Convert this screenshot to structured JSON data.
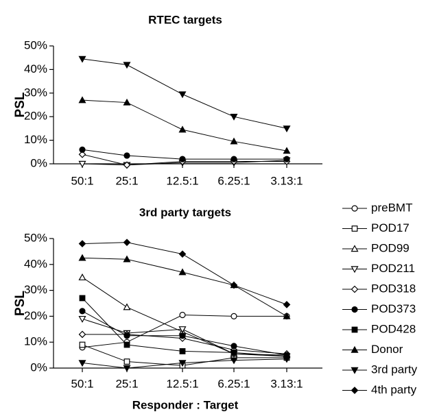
{
  "chart_data": [
    {
      "type": "line",
      "title": "RTEC targets",
      "y_label": "PSL",
      "categories": [
        "50:1",
        "25:1",
        "12.5:1",
        "6.25:1",
        "3.13:1"
      ],
      "ylim": [
        0,
        50
      ],
      "yticks": [
        {
          "value": 0,
          "label": "0%"
        },
        {
          "value": 10,
          "label": "10%"
        },
        {
          "value": 20,
          "label": "20%"
        },
        {
          "value": 30,
          "label": "30%"
        },
        {
          "value": 40,
          "label": "40%"
        },
        {
          "value": 50,
          "label": "50%"
        }
      ],
      "series": [
        {
          "name": "POD211",
          "color": "#000000",
          "marker": "triangle-down-open",
          "values": [
            0,
            -0.5,
            0.5,
            0.5,
            1.5
          ]
        },
        {
          "name": "POD318",
          "color": "#000000",
          "marker": "diamond-open",
          "values": [
            4,
            -0.5,
            1,
            1,
            1
          ]
        },
        {
          "name": "POD373",
          "color": "#000000",
          "marker": "circle-filled",
          "values": [
            6,
            3.5,
            2,
            2,
            2
          ]
        },
        {
          "name": "Donor",
          "color": "#000000",
          "marker": "triangle-up-filled",
          "values": [
            27,
            26,
            14.5,
            9.5,
            5.5
          ]
        },
        {
          "name": "3rd party",
          "color": "#000000",
          "marker": "triangle-down-filled",
          "values": [
            44.5,
            42,
            29.5,
            20,
            15
          ]
        }
      ]
    },
    {
      "type": "line",
      "title": "3rd party targets",
      "y_label": "PSL",
      "x_label": "Responder : Target",
      "categories": [
        "50:1",
        "25:1",
        "12.5:1",
        "6.25:1",
        "3.13:1"
      ],
      "ylim": [
        0,
        50
      ],
      "yticks": [
        {
          "value": 0,
          "label": "0%"
        },
        {
          "value": 10,
          "label": "10%"
        },
        {
          "value": 20,
          "label": "20%"
        },
        {
          "value": 30,
          "label": "30%"
        },
        {
          "value": 40,
          "label": "40%"
        },
        {
          "value": 50,
          "label": "50%"
        }
      ],
      "legend": true,
      "series": [
        {
          "name": "preBMT",
          "color": "#000000",
          "marker": "circle-open",
          "values": [
            8,
            10,
            20.5,
            20,
            20
          ]
        },
        {
          "name": "POD17",
          "color": "#000000",
          "marker": "square-open",
          "values": [
            9,
            2.5,
            1,
            4,
            4
          ]
        },
        {
          "name": "POD99",
          "color": "#000000",
          "marker": "triangle-up-open",
          "values": [
            35,
            23.5,
            14,
            5.5,
            5
          ]
        },
        {
          "name": "POD211",
          "color": "#000000",
          "marker": "triangle-down-open",
          "values": [
            19,
            13.5,
            15,
            5.5,
            4.5
          ]
        },
        {
          "name": "POD318",
          "color": "#000000",
          "marker": "diamond-open",
          "values": [
            13,
            13,
            11.5,
            7,
            5.5
          ]
        },
        {
          "name": "POD373",
          "color": "#000000",
          "marker": "circle-filled",
          "values": [
            22,
            12.5,
            12.5,
            8.5,
            5
          ]
        },
        {
          "name": "POD428",
          "color": "#000000",
          "marker": "square-filled",
          "values": [
            27,
            9,
            6.5,
            6,
            4.5
          ]
        },
        {
          "name": "Donor",
          "color": "#000000",
          "marker": "triangle-up-filled",
          "values": [
            42.5,
            42,
            37,
            32,
            20
          ]
        },
        {
          "name": "3rd party",
          "color": "#000000",
          "marker": "triangle-down-filled",
          "values": [
            2,
            0,
            2,
            3,
            3.5
          ]
        },
        {
          "name": "4th party",
          "color": "#000000",
          "marker": "diamond-filled",
          "values": [
            48,
            48.5,
            44,
            32,
            24.5
          ]
        }
      ]
    }
  ]
}
